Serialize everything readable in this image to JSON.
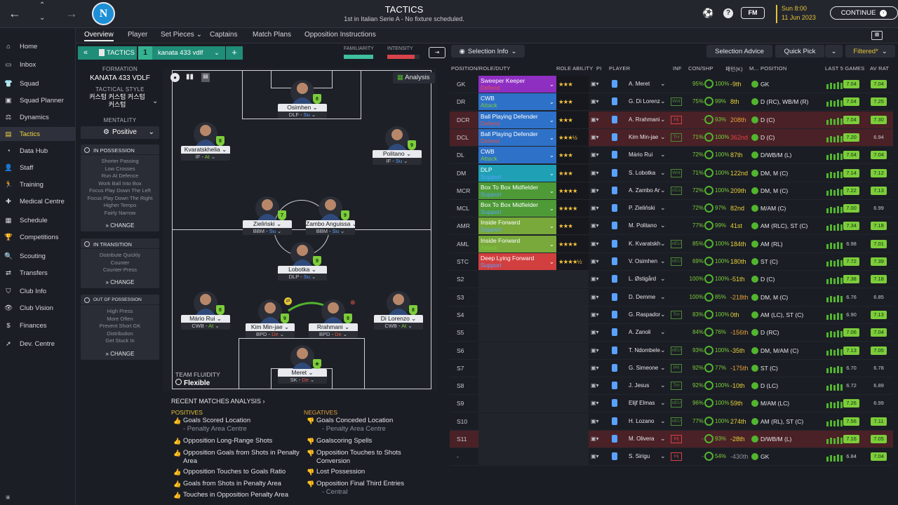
{
  "topbar": {
    "title": "TACTICS",
    "subtitle": "1st in Italian Serie A - No fixture scheduled.",
    "date_time": "Sun 8:00",
    "date": "11 Jun 2023",
    "continue_label": "CONTINUE",
    "fm_label": "FM"
  },
  "sidebar": {
    "items": [
      {
        "label": "Home",
        "icon": "home-icon"
      },
      {
        "label": "Inbox",
        "icon": "inbox-icon"
      },
      {
        "label": "Squad",
        "icon": "shirt-icon"
      },
      {
        "label": "Squad Planner",
        "icon": "planner-icon"
      },
      {
        "label": "Dynamics",
        "icon": "dynamics-icon"
      },
      {
        "label": "Tactics",
        "icon": "tactics-icon"
      },
      {
        "label": "Data Hub",
        "icon": "datahub-icon"
      },
      {
        "label": "Staff",
        "icon": "staff-icon"
      },
      {
        "label": "Training",
        "icon": "training-icon"
      },
      {
        "label": "Medical Centre",
        "icon": "medical-icon"
      },
      {
        "label": "Schedule",
        "icon": "calendar-icon"
      },
      {
        "label": "Competitions",
        "icon": "trophy-icon"
      },
      {
        "label": "Scouting",
        "icon": "scouting-icon"
      },
      {
        "label": "Transfers",
        "icon": "transfers-icon"
      },
      {
        "label": "Club Info",
        "icon": "club-info-icon"
      },
      {
        "label": "Club Vision",
        "icon": "vision-icon"
      },
      {
        "label": "Finances",
        "icon": "finances-icon"
      },
      {
        "label": "Dev. Centre",
        "icon": "dev-centre-icon"
      }
    ]
  },
  "subnav": {
    "tabs": [
      "Overview",
      "Player",
      "Set Pieces",
      "Captains",
      "Match Plans",
      "Opposition Instructions"
    ]
  },
  "tactic_bar": {
    "label": "TACTICS",
    "slot": "1",
    "name": "kanata 433 vdlf",
    "familiarity_label": "FAMILIARITY",
    "intensity_label": "INTENSITY",
    "selection_info": "Selection Info",
    "selection_advice": "Selection Advice",
    "quick_pick": "Quick Pick",
    "filtered": "Filtered*"
  },
  "left_panel": {
    "formation_label": "FORMATION",
    "formation": "KANATA 433 VDLF",
    "style_label": "TACTICAL STYLE",
    "style": "커스텀 커스텀 커스텀 커스텀",
    "mentality_label": "MENTALITY",
    "mentality": "Positive",
    "in_possession": {
      "title": "IN POSSESSION",
      "lines": [
        "Shorter Passing",
        "Low Crosses",
        "Run At Defence",
        "Work Ball Into Box",
        "Focus Play Down The Left",
        "Focus Play Down The Right",
        "Higher Tempo",
        "Fairly Narrow"
      ]
    },
    "in_transition": {
      "title": "IN TRANSITION",
      "lines": [
        "Distribute Quickly",
        "Counter",
        "Counter-Press"
      ]
    },
    "out_of_possession": {
      "title": "OUT OF POSSESSION",
      "lines": [
        "High Press",
        "More Often",
        "Prevent Short GK",
        "Distribution",
        "Get Stuck In"
      ]
    },
    "change": "CHANGE"
  },
  "pitch": {
    "analysis": "Analysis",
    "fluidity_label": "TEAM FLUIDITY",
    "fluidity": "Flexible",
    "players": [
      {
        "name": "Osimhen",
        "role": "DLF",
        "duty": "Su",
        "dcls": "s",
        "left": 163,
        "top": 17,
        "badge": "8"
      },
      {
        "name": "Kvaratskhelia",
        "role": "IF",
        "duty": "At",
        "dcls": "a",
        "left": 25,
        "top": 77,
        "badge": "8"
      },
      {
        "name": "Politano",
        "role": "IF",
        "duty": "Su",
        "dcls": "s",
        "left": 298,
        "top": 83,
        "badge": "9"
      },
      {
        "name": "Zieliński",
        "role": "BBM",
        "duty": "Su",
        "dcls": "s",
        "left": 113,
        "top": 183,
        "badge": "7"
      },
      {
        "name": "Zambo Anguissa",
        "role": "BBM",
        "duty": "Su",
        "dcls": "s",
        "left": 203,
        "top": 183,
        "badge": "9"
      },
      {
        "name": "Lobotka",
        "role": "DLP",
        "duty": "Su",
        "dcls": "s",
        "left": 163,
        "top": 248,
        "badge": "9"
      },
      {
        "name": "Mário Rui",
        "role": "CWB",
        "duty": "At",
        "dcls": "a",
        "left": 25,
        "top": 318,
        "badge": "8"
      },
      {
        "name": "Kim Min-jae",
        "role": "BPD",
        "duty": "De",
        "dcls": "d",
        "left": 117,
        "top": 330,
        "badge": "9"
      },
      {
        "name": "Rrahmani",
        "role": "BPD",
        "duty": "De",
        "dcls": "d",
        "left": 207,
        "top": 330,
        "badge": "9"
      },
      {
        "name": "Di Lorenzo",
        "role": "CWB",
        "duty": "At",
        "dcls": "a",
        "left": 300,
        "top": 318,
        "badge": "8"
      },
      {
        "name": "Meret",
        "role": "SK",
        "duty": "De",
        "dcls": "d",
        "left": 163,
        "top": 395,
        "badge": "★"
      }
    ]
  },
  "analysis": {
    "title": "RECENT MATCHES ANALYSIS",
    "positives_label": "POSITIVES",
    "negatives_label": "NEGATIVES",
    "positives": [
      {
        "t": "Goals Scored Location",
        "s": "- Penalty Area Centre"
      },
      {
        "t": "Opposition Long-Range Shots"
      },
      {
        "t": "Opposition Goals from Shots in Penalty Area"
      },
      {
        "t": "Opposition Touches to Goals Ratio"
      },
      {
        "t": "Goals from Shots in Penalty Area"
      },
      {
        "t": "Touches in Opposition Penalty Area"
      }
    ],
    "negatives": [
      {
        "t": "Goals Conceded Location",
        "s": "- Penalty Area Centre"
      },
      {
        "t": "Goalscoring Spells"
      },
      {
        "t": "Opposition Touches to Shots Conversion"
      },
      {
        "t": "Lost Possession"
      },
      {
        "t": "Opposition Final Third Entries",
        "s": "- Central"
      }
    ]
  },
  "table": {
    "headers": [
      "POSITION/ROLE/DUTY",
      "ROLE ABILITY",
      "PI",
      "PLAYER",
      "INF",
      "CON/SHP",
      "패턴(K)",
      "M...",
      "POSITION",
      "LAST 5 GAMES",
      "AV RAT"
    ],
    "rows": [
      {
        "pos": "GK",
        "role": "Sweeper Keeper",
        "duty": "Defend",
        "color": "#8e2fc2",
        "dcol": "#e05545",
        "stars": "★★★",
        "player": "A. Meret",
        "inf": "",
        "con": "95%",
        "shp": "100%",
        "val": "-9th",
        "vcol": "#e6d13a",
        "mf": "",
        "position": "GK",
        "r1": "7.04",
        "r2": "7.04",
        "bg": ""
      },
      {
        "pos": "DR",
        "role": "CWB",
        "duty": "Attack",
        "color": "#2e71c8",
        "dcol": "#7ccd3a",
        "stars": "★★★",
        "player": "G. Di Lorenzo",
        "inf": "Wnt",
        "con": "75%",
        "shp": "99%",
        "val": "8th",
        "vcol": "#e6d13a",
        "mf": "",
        "position": "D (RC), WB/M (R)",
        "r1": "7.04",
        "r2": "7.25",
        "bg": ""
      },
      {
        "pos": "DCR",
        "role": "Ball Playing Defender",
        "duty": "Defend",
        "color": "#2e71c8",
        "dcol": "#e05545",
        "stars": "★★★",
        "player": "A. Rrahmani",
        "inf": "Inj",
        "con": "-",
        "shp": "93%",
        "val": "208th",
        "vcol": "#e6a13a",
        "mf": "",
        "position": "D (C)",
        "r1": "7.04",
        "r2": "7.30",
        "bg": "#4a2126"
      },
      {
        "pos": "DCL",
        "role": "Ball Playing Defender",
        "duty": "Defend",
        "color": "#2e71c8",
        "dcol": "#e05545",
        "stars": "★★★½",
        "player": "Kim Min-jae",
        "inf": "Trv",
        "con": "71%",
        "shp": "100%",
        "val": "362nd",
        "vcol": "#e04545",
        "mf": "",
        "position": "D (C)",
        "r1": "7.20",
        "r2": "6.94",
        "bg": "#4a2126"
      },
      {
        "pos": "DL",
        "role": "CWB",
        "duty": "Attack",
        "color": "#2e71c8",
        "dcol": "#7ccd3a",
        "stars": "★★★",
        "player": "Mário Rui",
        "inf": "",
        "con": "72%",
        "shp": "100%",
        "val": "87th",
        "vcol": "#e6d13a",
        "mf": "",
        "position": "D/WB/M (L)",
        "r1": "7.04",
        "r2": "7.04",
        "bg": ""
      },
      {
        "pos": "DM",
        "role": "DLP",
        "duty": "Support",
        "color": "#1fa0b5",
        "dcol": "#5aa2ff",
        "stars": "★★★",
        "player": "S. Lobotka",
        "inf": "Wnt",
        "con": "71%",
        "shp": "100%",
        "val": "122nd",
        "vcol": "#e6d13a",
        "mf": "",
        "position": "DM, M (C)",
        "r1": "7.14",
        "r2": "7.12",
        "bg": ""
      },
      {
        "pos": "MCR",
        "role": "Box To Box Midfielder",
        "duty": "Support",
        "color": "#4d9a36",
        "dcol": "#5aa2ff",
        "stars": "★★★★",
        "player": "A. Zambo Anguissa",
        "inf": "nCo",
        "con": "72%",
        "shp": "100%",
        "val": "209th",
        "vcol": "#e6d13a",
        "mf": "",
        "position": "DM, M (C)",
        "r1": "7.22",
        "r2": "7.13",
        "bg": ""
      },
      {
        "pos": "MCL",
        "role": "Box To Box Midfielder",
        "duty": "Support",
        "color": "#4d9a36",
        "dcol": "#5aa2ff",
        "stars": "★★★★",
        "player": "P. Zieliński",
        "inf": "",
        "con": "72%",
        "shp": "97%",
        "val": "82nd",
        "vcol": "#e6d13a",
        "mf": "",
        "position": "M/AM (C)",
        "r1": "7.00",
        "r2": "6.99",
        "bg": ""
      },
      {
        "pos": "AMR",
        "role": "Inside Forward",
        "duty": "Support",
        "color": "#78a93a",
        "dcol": "#5aa2ff",
        "stars": "★★★",
        "player": "M. Politano",
        "inf": "",
        "con": "77%",
        "shp": "99%",
        "val": "41st",
        "vcol": "#e6d13a",
        "mf": "",
        "position": "AM (RLC), ST (C)",
        "r1": "7.34",
        "r2": "7.18",
        "bg": ""
      },
      {
        "pos": "AML",
        "role": "Inside Forward",
        "duty": "Attack",
        "color": "#78a93a",
        "dcol": "#7ccd3a",
        "stars": "★★★★",
        "player": "K. Kvaratskhelia",
        "inf": "nEU",
        "con": "85%",
        "shp": "100%",
        "val": "184th",
        "vcol": "#e6d13a",
        "mf": "",
        "position": "AM (RL)",
        "r1": "6.98",
        "r2": "7.01",
        "bg": ""
      },
      {
        "pos": "STC",
        "role": "Deep Lying Forward",
        "duty": "Support",
        "color": "#d23f3f",
        "dcol": "#5aa2ff",
        "stars": "★★★★½",
        "player": "V. Osimhen",
        "inf": "nEU",
        "con": "69%",
        "shp": "100%",
        "val": "180th",
        "vcol": "#e6d13a",
        "mf": "",
        "position": "ST (C)",
        "r1": "7.72",
        "r2": "7.39",
        "bg": ""
      },
      {
        "pos": "S2",
        "role": "",
        "duty": "",
        "color": "",
        "dcol": "",
        "stars": "",
        "player": "L. Østigård",
        "inf": "",
        "con": "100%",
        "shp": "100%",
        "val": "-51th",
        "vcol": "#e6d13a",
        "mf": "",
        "position": "D (C)",
        "r1": "7.38",
        "r2": "7.18",
        "bg": ""
      },
      {
        "pos": "S3",
        "role": "",
        "duty": "",
        "color": "",
        "dcol": "",
        "stars": "",
        "player": "D. Demme",
        "inf": "",
        "con": "100%",
        "shp": "85%",
        "val": "-218th",
        "vcol": "#e6a13a",
        "mf": "",
        "position": "DM, M (C)",
        "r1": "6.76",
        "r2": "6.85",
        "bg": ""
      },
      {
        "pos": "S4",
        "role": "",
        "duty": "",
        "color": "",
        "dcol": "",
        "stars": "",
        "player": "G. Raspadori",
        "inf": "Trn",
        "con": "83%",
        "shp": "100%",
        "val": "0th",
        "vcol": "#e6d13a",
        "mf": "",
        "position": "AM (LC), ST (C)",
        "r1": "6.90",
        "r2": "7.13",
        "bg": ""
      },
      {
        "pos": "S5",
        "role": "",
        "duty": "",
        "color": "",
        "dcol": "",
        "stars": "",
        "player": "A. Zanoli",
        "inf": "",
        "con": "84%",
        "shp": "76%",
        "val": "-156th",
        "vcol": "#e6a13a",
        "mf": "",
        "position": "D (RC)",
        "r1": "7.06",
        "r2": "7.04",
        "bg": ""
      },
      {
        "pos": "S6",
        "role": "",
        "duty": "",
        "color": "",
        "dcol": "",
        "stars": "",
        "player": "T. Ndombele",
        "inf": "nEU",
        "con": "93%",
        "shp": "100%",
        "val": "-35th",
        "vcol": "#e6d13a",
        "mf": "",
        "position": "DM, M/AM (C)",
        "r1": "7.13",
        "r2": "7.05",
        "bg": ""
      },
      {
        "pos": "S7",
        "role": "",
        "duty": "",
        "color": "",
        "dcol": "",
        "stars": "",
        "player": "G. Simeone",
        "inf": "PR",
        "con": "92%",
        "shp": "77%",
        "val": "-175th",
        "vcol": "#e6a13a",
        "mf": "",
        "position": "ST (C)",
        "r1": "6.70",
        "r2": "6.78",
        "bg": ""
      },
      {
        "pos": "S8",
        "role": "",
        "duty": "",
        "color": "",
        "dcol": "",
        "stars": "",
        "player": "J. Jesus",
        "inf": "Trn",
        "con": "92%",
        "shp": "100%",
        "val": "-10th",
        "vcol": "#e6d13a",
        "mf": "",
        "position": "D (LC)",
        "r1": "6.72",
        "r2": "6.89",
        "bg": ""
      },
      {
        "pos": "S9",
        "role": "",
        "duty": "",
        "color": "",
        "dcol": "",
        "stars": "",
        "player": "Elijf Elmas",
        "inf": "nEU",
        "con": "96%",
        "shp": "100%",
        "val": "59th",
        "vcol": "#e6d13a",
        "mf": "",
        "position": "M/AM (LC)",
        "r1": "7.26",
        "r2": "6.99",
        "bg": ""
      },
      {
        "pos": "S10",
        "role": "",
        "duty": "",
        "color": "",
        "dcol": "",
        "stars": "",
        "player": "H. Lozano",
        "inf": "nEU",
        "con": "77%",
        "shp": "100%",
        "val": "274th",
        "vcol": "#e6d13a",
        "mf": "",
        "position": "AM (RL), ST (C)",
        "r1": "7.56",
        "r2": "7.11",
        "bg": ""
      },
      {
        "pos": "S11",
        "role": "",
        "duty": "",
        "color": "",
        "dcol": "",
        "stars": "",
        "player": "M. Olivera",
        "inf": "Inj",
        "con": "-",
        "shp": "93%",
        "val": "-28th",
        "vcol": "#e6d13a",
        "mf": "",
        "position": "D/WB/M (L)",
        "r1": "7.16",
        "r2": "7.05",
        "bg": "#4a2126"
      },
      {
        "pos": "-",
        "role": "",
        "duty": "",
        "color": "",
        "dcol": "",
        "stars": "",
        "player": "S. Sirigu",
        "inf": "Inj",
        "con": "-",
        "shp": "54%",
        "val": "-430th",
        "vcol": "#8e929b",
        "mf": "",
        "position": "GK",
        "r1": "6.84",
        "r2": "7.04",
        "bg": ""
      }
    ]
  }
}
